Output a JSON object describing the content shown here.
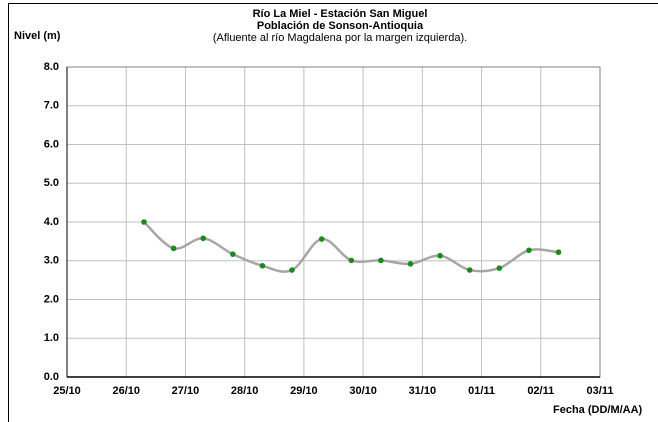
{
  "chart_data": {
    "type": "line",
    "title": "Río La Miel  - Estación San Miguel",
    "subtitle": "Población de Sonson-Antioquia",
    "annotation": "(Afluente al río Magdalena por la margen izquierda).",
    "ylabel": "Nivel (m)",
    "xlabel": "Fecha (DD/M/AA)",
    "x": [
      1.3,
      1.8,
      2.3,
      2.8,
      3.3,
      3.8,
      4.3,
      4.8,
      5.3,
      5.8,
      6.3,
      6.8,
      7.3,
      7.8,
      8.3
    ],
    "series": [
      {
        "name": "Nivel",
        "color": "#a6a6a6",
        "marker_color": "#1a8a1a",
        "values": [
          4.0,
          3.32,
          3.58,
          3.17,
          2.87,
          2.76,
          3.56,
          3.01,
          3.01,
          2.92,
          3.13,
          2.76,
          2.81,
          3.27,
          3.22
        ]
      }
    ],
    "xlim": [
      0,
      9
    ],
    "xticks": [
      {
        "value": 0,
        "label": "25/10"
      },
      {
        "value": 1,
        "label": "26/10"
      },
      {
        "value": 2,
        "label": "27/10"
      },
      {
        "value": 3,
        "label": "28/10"
      },
      {
        "value": 4,
        "label": "29/10"
      },
      {
        "value": 5,
        "label": "30/10"
      },
      {
        "value": 6,
        "label": "31/10"
      },
      {
        "value": 7,
        "label": "01/11"
      },
      {
        "value": 8,
        "label": "02/11"
      },
      {
        "value": 9,
        "label": "03/11"
      }
    ],
    "ylim": [
      0,
      8
    ],
    "yticks": [
      {
        "value": 0,
        "label": "0.0"
      },
      {
        "value": 1,
        "label": "1.0"
      },
      {
        "value": 2,
        "label": "2.0"
      },
      {
        "value": 3,
        "label": "3.0"
      },
      {
        "value": 4,
        "label": "4.0"
      },
      {
        "value": 5,
        "label": "5.0"
      },
      {
        "value": 6,
        "label": "6.0"
      },
      {
        "value": 7,
        "label": "7.0"
      },
      {
        "value": 8,
        "label": "8.0"
      }
    ],
    "grid": true
  }
}
